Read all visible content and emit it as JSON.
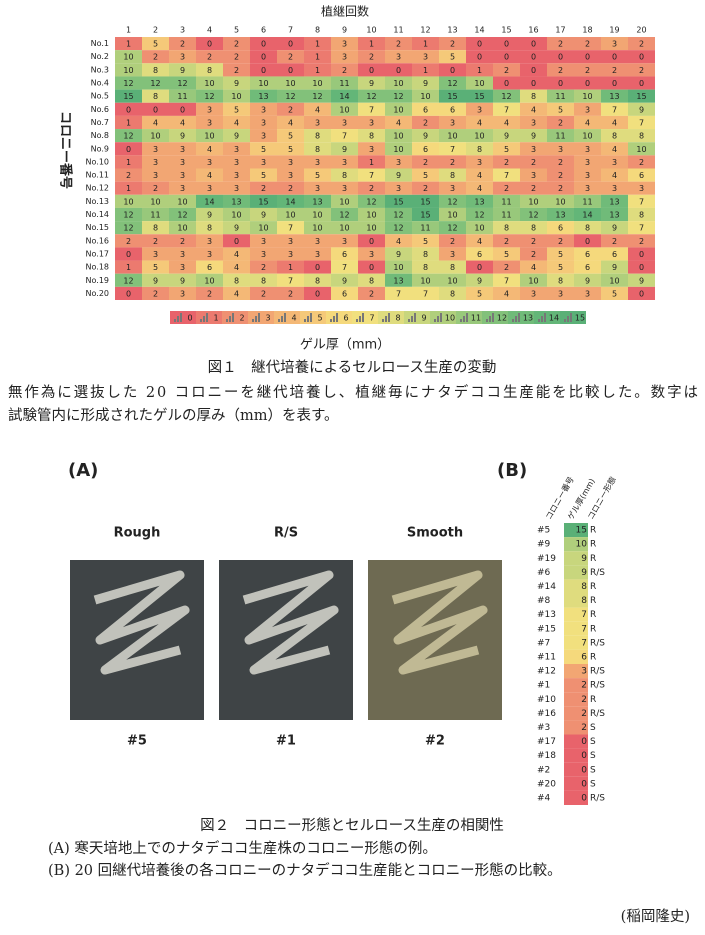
{
  "heatmap": {
    "title": "植継回数",
    "columns": [
      1,
      2,
      3,
      4,
      5,
      6,
      7,
      8,
      9,
      10,
      11,
      12,
      13,
      14,
      15,
      16,
      17,
      18,
      19,
      20
    ],
    "y_label": "コロニー番号",
    "rows": [
      {
        "label": "No.1",
        "values": [
          1,
          5,
          2,
          0,
          2,
          0,
          0,
          1,
          3,
          1,
          2,
          1,
          2,
          0,
          0,
          0,
          2,
          2,
          3,
          2
        ]
      },
      {
        "label": "No.2",
        "values": [
          10,
          2,
          3,
          2,
          2,
          0,
          2,
          1,
          3,
          2,
          3,
          3,
          5,
          0,
          0,
          0,
          0,
          0,
          0,
          0
        ]
      },
      {
        "label": "No.3",
        "values": [
          10,
          8,
          9,
          8,
          2,
          0,
          0,
          1,
          2,
          0,
          0,
          1,
          0,
          1,
          2,
          0,
          2,
          2,
          2,
          2
        ]
      },
      {
        "label": "No.4",
        "values": [
          12,
          12,
          12,
          10,
          9,
          10,
          10,
          10,
          11,
          9,
          10,
          9,
          12,
          10,
          0,
          0,
          0,
          0,
          0,
          0
        ]
      },
      {
        "label": "No.5",
        "values": [
          15,
          8,
          11,
          12,
          10,
          13,
          12,
          12,
          14,
          12,
          12,
          10,
          15,
          15,
          12,
          8,
          11,
          10,
          13,
          15
        ]
      },
      {
        "label": "No.6",
        "values": [
          0,
          0,
          0,
          3,
          5,
          3,
          2,
          4,
          10,
          7,
          10,
          6,
          6,
          3,
          7,
          4,
          5,
          3,
          7,
          9
        ]
      },
      {
        "label": "No.7",
        "values": [
          1,
          4,
          4,
          3,
          4,
          3,
          4,
          3,
          3,
          3,
          4,
          2,
          3,
          4,
          4,
          3,
          2,
          4,
          4,
          7
        ]
      },
      {
        "label": "No.8",
        "values": [
          12,
          10,
          9,
          10,
          9,
          3,
          5,
          8,
          7,
          8,
          10,
          9,
          10,
          10,
          9,
          9,
          11,
          10,
          8,
          8
        ]
      },
      {
        "label": "No.9",
        "values": [
          0,
          3,
          3,
          4,
          3,
          5,
          5,
          8,
          9,
          3,
          10,
          6,
          7,
          8,
          5,
          3,
          3,
          3,
          4,
          10
        ]
      },
      {
        "label": "No.10",
        "values": [
          1,
          3,
          3,
          3,
          3,
          3,
          3,
          3,
          3,
          1,
          3,
          2,
          2,
          3,
          2,
          2,
          2,
          3,
          3,
          2
        ]
      },
      {
        "label": "No.11",
        "values": [
          2,
          3,
          3,
          4,
          3,
          5,
          3,
          5,
          8,
          7,
          9,
          5,
          8,
          4,
          7,
          3,
          2,
          3,
          4,
          6
        ]
      },
      {
        "label": "No.12",
        "values": [
          1,
          2,
          3,
          3,
          3,
          2,
          2,
          3,
          3,
          2,
          3,
          2,
          3,
          4,
          2,
          2,
          2,
          3,
          3,
          3
        ]
      },
      {
        "label": "No.13",
        "values": [
          10,
          10,
          10,
          14,
          13,
          15,
          14,
          13,
          10,
          12,
          15,
          15,
          12,
          13,
          11,
          10,
          10,
          11,
          13,
          7
        ]
      },
      {
        "label": "No.14",
        "values": [
          12,
          11,
          12,
          9,
          10,
          9,
          10,
          10,
          12,
          10,
          12,
          15,
          10,
          12,
          11,
          12,
          13,
          14,
          13,
          8
        ]
      },
      {
        "label": "No.15",
        "values": [
          12,
          8,
          10,
          8,
          9,
          10,
          7,
          10,
          10,
          10,
          12,
          11,
          12,
          10,
          8,
          8,
          6,
          8,
          9,
          7
        ]
      },
      {
        "label": "No.16",
        "values": [
          2,
          2,
          2,
          3,
          0,
          3,
          3,
          3,
          3,
          0,
          4,
          5,
          2,
          4,
          2,
          2,
          2,
          0,
          2,
          2
        ]
      },
      {
        "label": "No.17",
        "values": [
          0,
          3,
          3,
          3,
          4,
          3,
          3,
          3,
          6,
          3,
          9,
          8,
          3,
          6,
          5,
          2,
          5,
          6,
          6,
          0
        ]
      },
      {
        "label": "No.18",
        "values": [
          1,
          5,
          3,
          6,
          4,
          2,
          1,
          0,
          7,
          0,
          10,
          8,
          8,
          0,
          2,
          4,
          5,
          6,
          9,
          0
        ]
      },
      {
        "label": "No.19",
        "values": [
          12,
          9,
          9,
          10,
          8,
          8,
          7,
          8,
          9,
          8,
          13,
          10,
          10,
          9,
          7,
          10,
          8,
          9,
          10,
          9
        ]
      },
      {
        "label": "No.20",
        "values": [
          0,
          2,
          3,
          2,
          4,
          2,
          2,
          0,
          6,
          2,
          7,
          7,
          8,
          5,
          4,
          3,
          3,
          3,
          5,
          0
        ]
      }
    ],
    "legend_values": [
      0,
      1,
      2,
      3,
      4,
      5,
      6,
      7,
      8,
      9,
      10,
      11,
      12,
      13,
      14,
      15
    ],
    "legend_colors": [
      "#e8636b",
      "#ec7a6f",
      "#ef9072",
      "#f2a673",
      "#f4b876",
      "#f5c979",
      "#f5d97c",
      "#f1e07e",
      "#dfdc7e",
      "#c8d67d",
      "#b0cf7c",
      "#98c87b",
      "#82c17a",
      "#70bb79",
      "#63b678",
      "#5ab077"
    ],
    "legend_title": "ゲル厚（mm）"
  },
  "figure1": {
    "caption": "図１　継代培養によるセルロース生産の変動",
    "text": [
      "無作為に選抜した 20 コロニーを継代培養し、植継毎にナタデココ生産能を比較した。数字は",
      "試験管内に形成されたゲルの厚み（mm）を表す。"
    ]
  },
  "panel_a": {
    "label": "(A)",
    "photos": [
      {
        "title": "Rough",
        "id": "#5"
      },
      {
        "title": "R/S",
        "id": "#1"
      },
      {
        "title": "Smooth",
        "id": "#2"
      }
    ]
  },
  "panel_b": {
    "label": "(B)",
    "headers": [
      "コロニー番号",
      "ゲル厚(mm)",
      "コロニー形態"
    ],
    "rows": [
      {
        "id": "#5",
        "value": 15,
        "form": "R"
      },
      {
        "id": "#9",
        "value": 10,
        "form": "R"
      },
      {
        "id": "#19",
        "value": 9,
        "form": "R"
      },
      {
        "id": "#6",
        "value": 9,
        "form": "R/S"
      },
      {
        "id": "#14",
        "value": 8,
        "form": "R"
      },
      {
        "id": "#8",
        "value": 8,
        "form": "R"
      },
      {
        "id": "#13",
        "value": 7,
        "form": "R"
      },
      {
        "id": "#15",
        "value": 7,
        "form": "R"
      },
      {
        "id": "#7",
        "value": 7,
        "form": "R/S"
      },
      {
        "id": "#11",
        "value": 6,
        "form": "R"
      },
      {
        "id": "#12",
        "value": 3,
        "form": "R/S"
      },
      {
        "id": "#1",
        "value": 2,
        "form": "R/S"
      },
      {
        "id": "#10",
        "value": 2,
        "form": "R"
      },
      {
        "id": "#16",
        "value": 2,
        "form": "R/S"
      },
      {
        "id": "#3",
        "value": 2,
        "form": "S"
      },
      {
        "id": "#17",
        "value": 0,
        "form": "S"
      },
      {
        "id": "#18",
        "value": 0,
        "form": "S"
      },
      {
        "id": "#2",
        "value": 0,
        "form": "S"
      },
      {
        "id": "#20",
        "value": 0,
        "form": "S"
      },
      {
        "id": "#4",
        "value": 0,
        "form": "R/S"
      }
    ]
  },
  "figure2": {
    "caption": "図２　コロニー形態とセルロース生産の相関性",
    "text": [
      "(A) 寒天培地上でのナタデココ生産株のコロニー形態の例。",
      "(B) 20 回継代培養後の各コロニーのナタデココ生産能とコロニー形態の比較。"
    ]
  },
  "author": "(稲岡隆史)"
}
